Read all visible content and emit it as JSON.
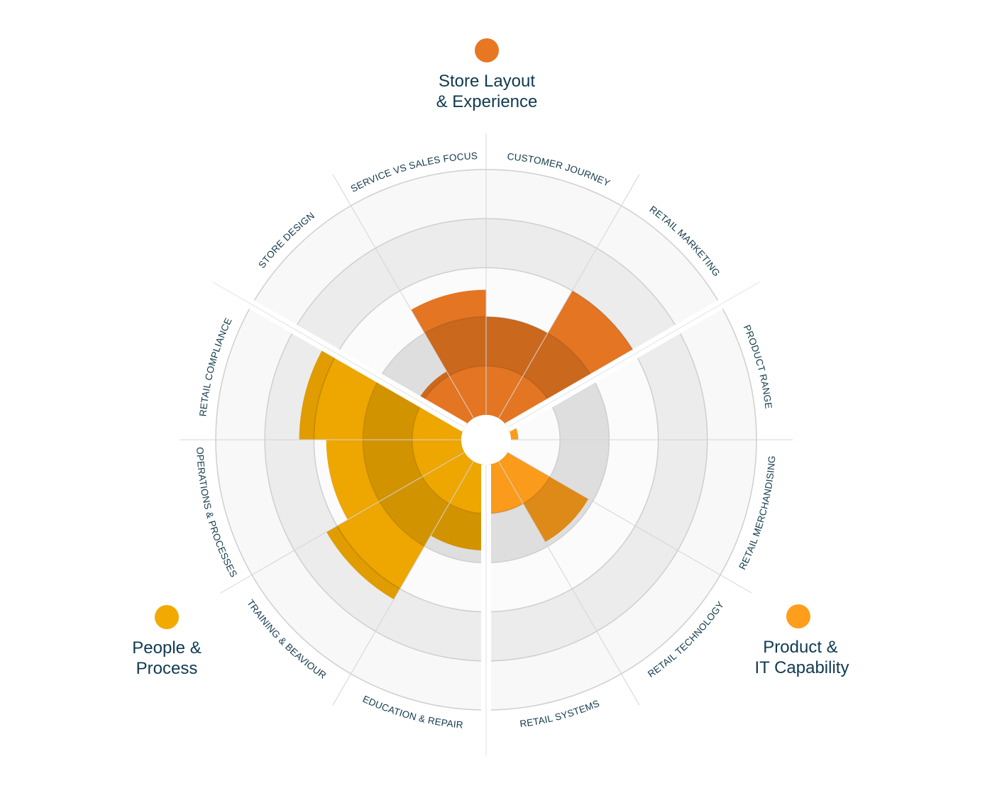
{
  "chart_data": {
    "type": "polar-area",
    "scale_max": 5,
    "categories": [
      "CUSTOMER JOURNEY",
      "RETAIL MARKETING",
      "PRODUCT RANGE",
      "RETAIL MERCHANDISING",
      "RETAIL TECHNOLOGY",
      "RETAIL SYSTEMS",
      "EDUCATION & REPAIR",
      "TRAINING & BEAVIOUR",
      "OPERATIONS & PROCESSES",
      "RETAIL COMPLIANCE",
      "STORE DESIGN",
      "SERVICE VS SALES FOCUS"
    ],
    "values": [
      2.0,
      3.0,
      0.15,
      0.0,
      1.9,
      1.0,
      1.75,
      3.25,
      2.75,
      3.3,
      1.1,
      2.55
    ],
    "groups": [
      {
        "name_line1": "Store Layout",
        "name_line2": "& Experience",
        "color": "#E87722",
        "categories": [
          "STORE DESIGN",
          "SERVICE VS SALES FOCUS",
          "CUSTOMER JOURNEY",
          "RETAIL MARKETING"
        ]
      },
      {
        "name_line1": "Product &",
        "name_line2": "IT Capability",
        "color": "#FF9E1B",
        "categories": [
          "PRODUCT RANGE",
          "RETAIL MERCHANDISING",
          "RETAIL TECHNOLOGY",
          "RETAIL SYSTEMS"
        ]
      },
      {
        "name_line1": "People &",
        "name_line2": "Process",
        "color": "#F2A900",
        "categories": [
          "EDUCATION & REPAIR",
          "TRAINING & BEAVIOUR",
          "OPERATIONS & PROCESSES",
          "RETAIL COMPLIANCE"
        ]
      }
    ],
    "category_group": [
      0,
      0,
      1,
      1,
      1,
      1,
      2,
      2,
      2,
      2,
      0,
      0
    ],
    "ring_colors": [
      "#dedede",
      "#fbfbfb",
      "#ececec",
      "#f8f8f8"
    ]
  }
}
